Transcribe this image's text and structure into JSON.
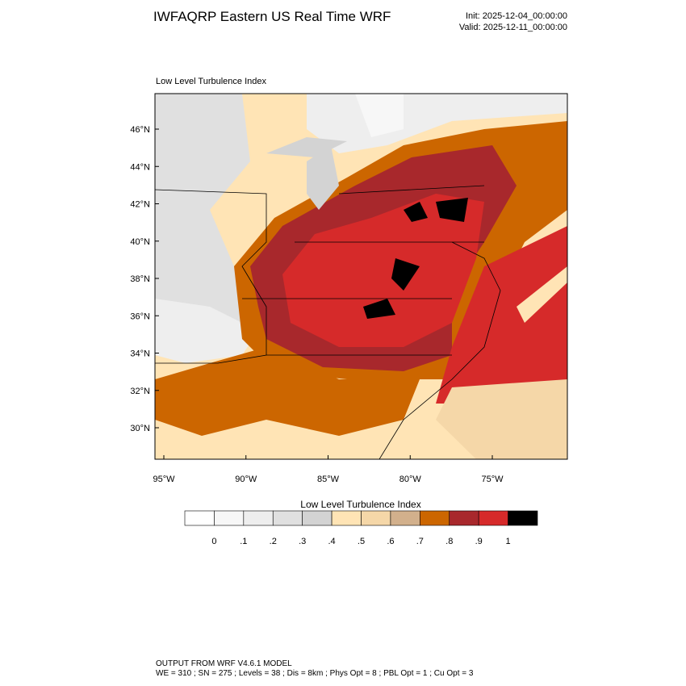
{
  "header": {
    "title": "IWFAQRP Eastern US Real Time WRF",
    "init": "Init: 2025-12-04_00:00:00",
    "valid": "Valid: 2025-12-11_00:00:00"
  },
  "map": {
    "title": "Low Level Turbulence Index",
    "lat_labels": [
      "46°N",
      "44°N",
      "42°N",
      "40°N",
      "38°N",
      "36°N",
      "34°N",
      "32°N",
      "30°N"
    ],
    "lon_labels": [
      "95°W",
      "90°W",
      "85°W",
      "80°W",
      "75°W"
    ]
  },
  "colorbar": {
    "title": "Low Level Turbulence Index",
    "colors": [
      "#ffffff",
      "#f7f7f7",
      "#eeeeee",
      "#e0e0e0",
      "#d3d3d3",
      "#ffe4b5",
      "#f5d7a8",
      "#d2b08c",
      "#cc6600",
      "#a8282c",
      "#d62a2a",
      "#000000"
    ],
    "labels": [
      "0",
      ".1",
      ".2",
      ".3",
      ".4",
      ".5",
      ".6",
      ".7",
      ".8",
      ".9",
      "1"
    ]
  },
  "footer": {
    "line1": "OUTPUT FROM WRF V4.6.1 MODEL",
    "line2": "WE = 310 ; SN = 275 ; Levels = 38 ; Dis = 8km ; Phys Opt = 8 ; PBL Opt = 1 ; Cu Opt = 3"
  }
}
